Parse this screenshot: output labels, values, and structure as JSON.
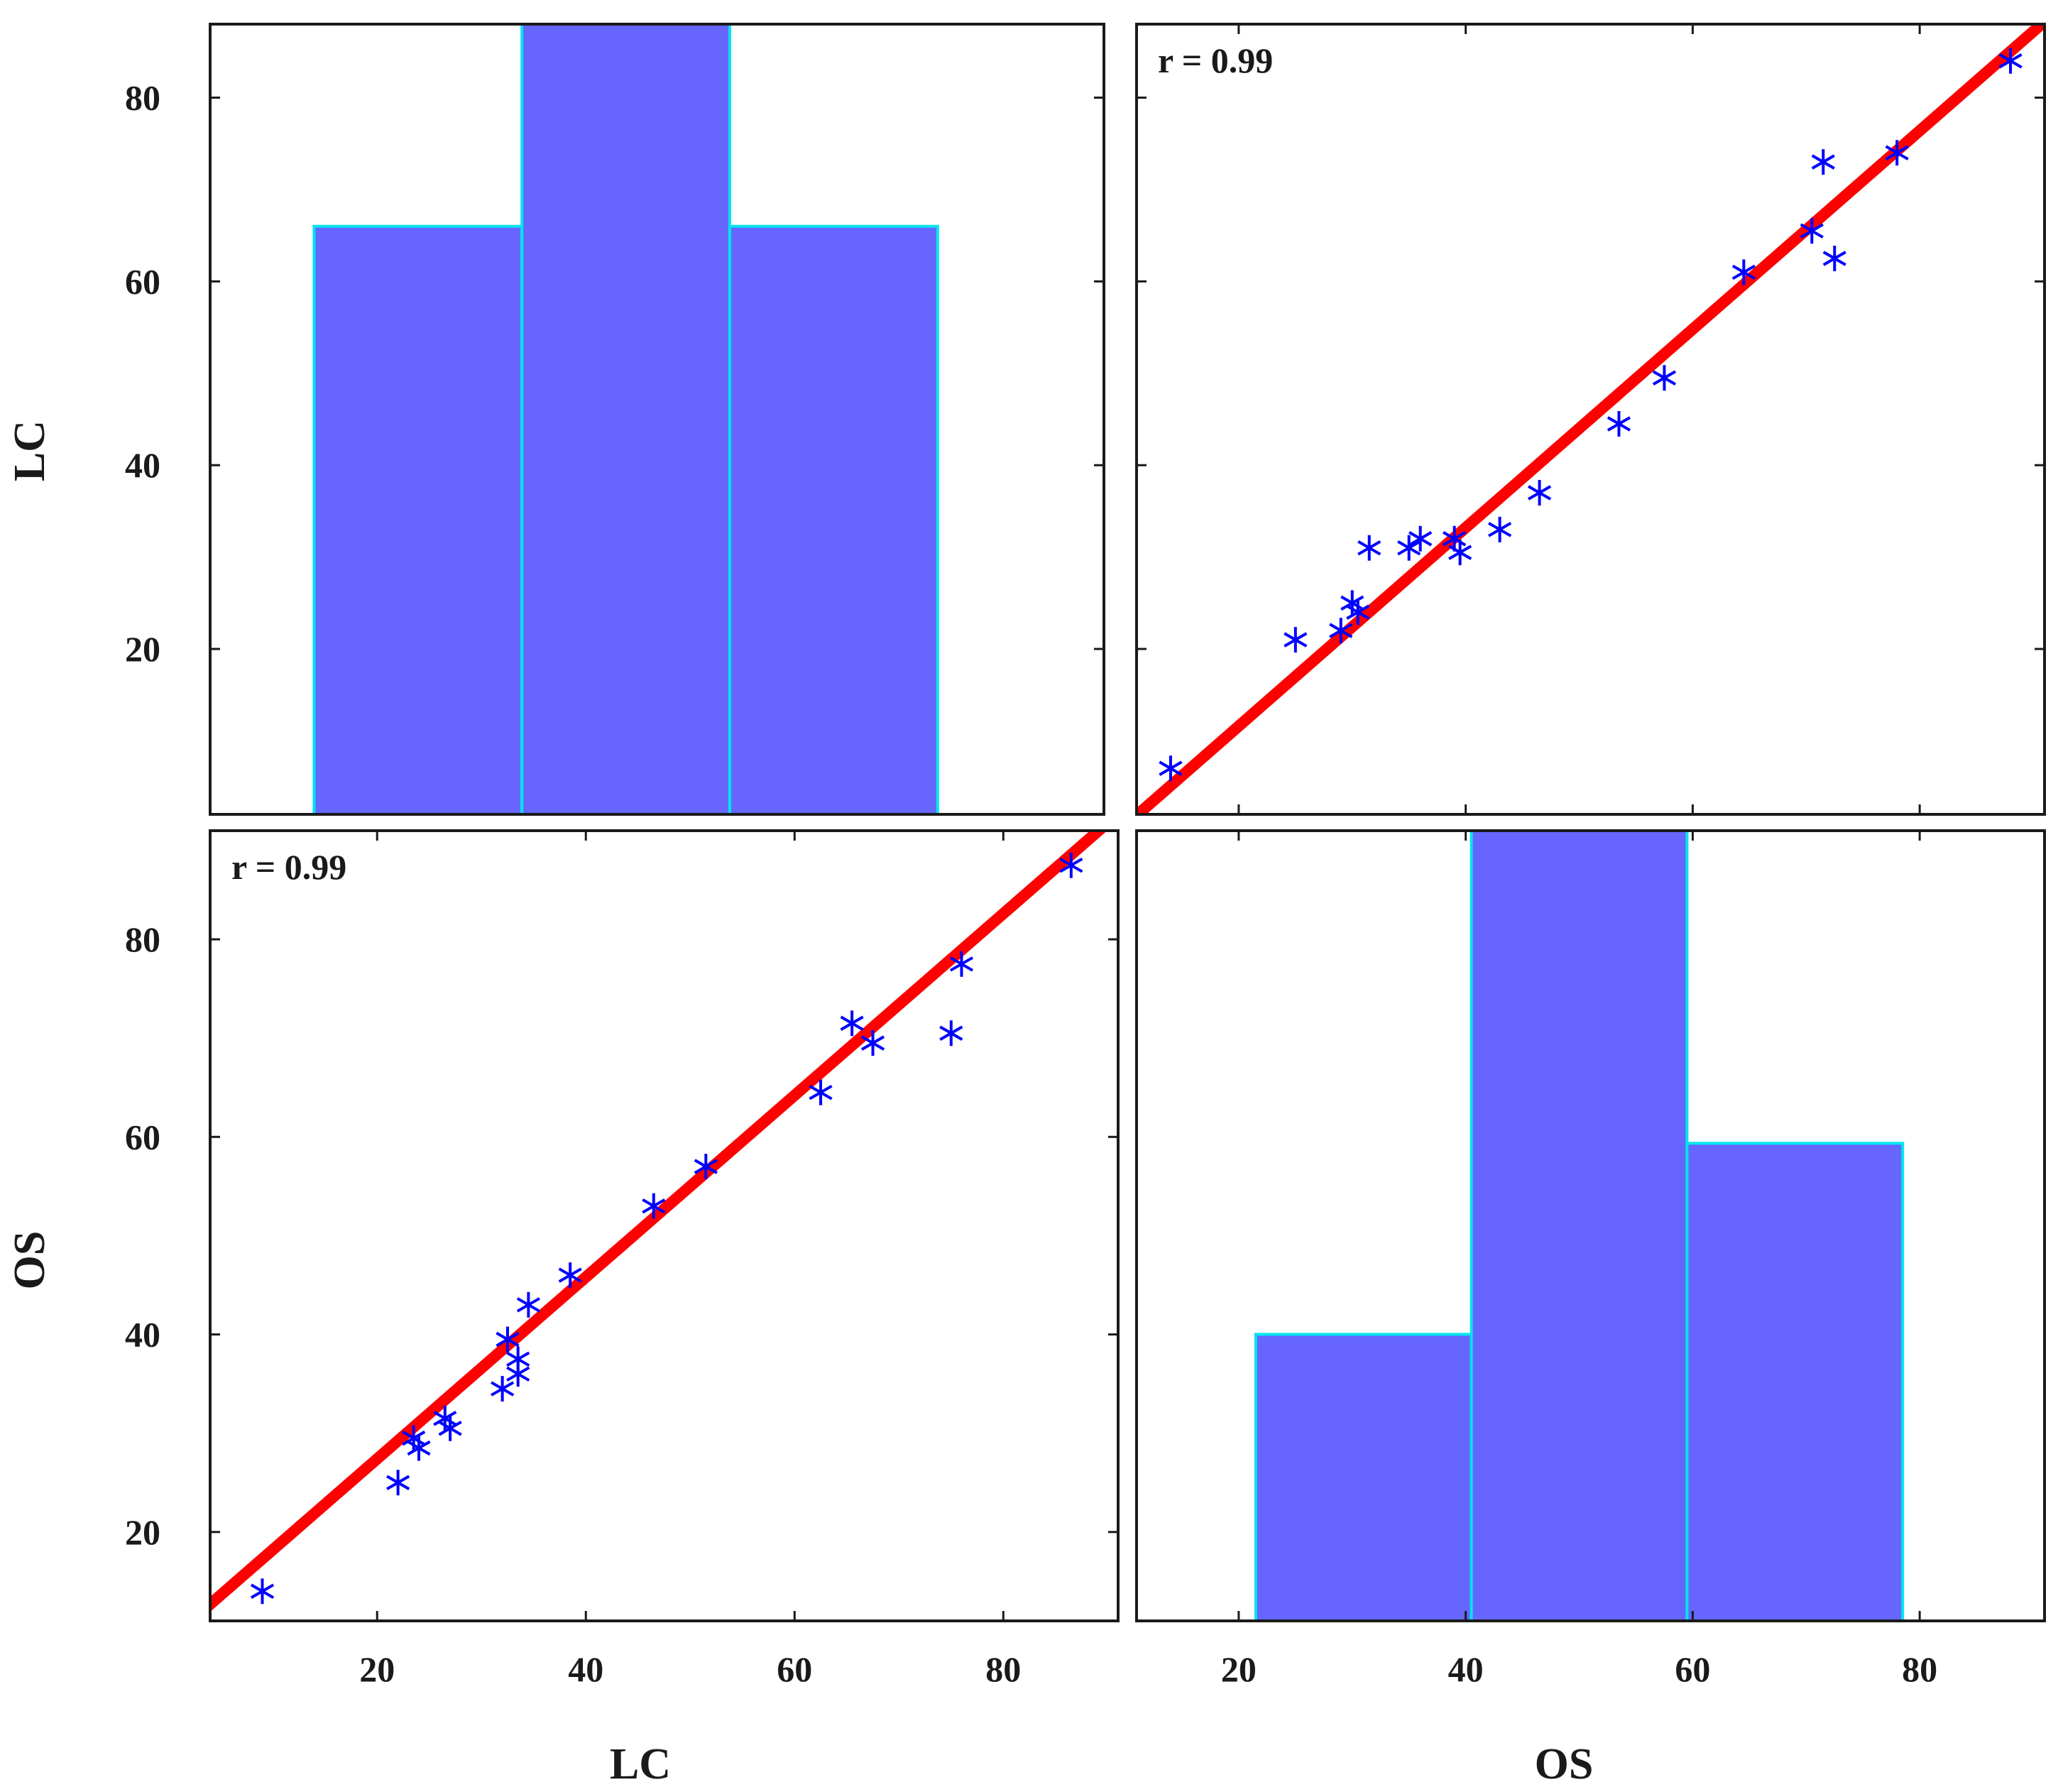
{
  "chart_data": {
    "type": "scatter-matrix",
    "variables": [
      "LC",
      "OS"
    ],
    "colors": {
      "bar_fill": "#6666ff",
      "bar_edge": "#00e5ee",
      "points": "#0000ff",
      "fit_line": "#ff0000"
    },
    "panels": [
      {
        "id": "lc-lc",
        "type": "histogram",
        "variable": "LC",
        "bin_edges": [
          14,
          34,
          54,
          74
        ],
        "values": [
          66,
          88,
          66
        ],
        "xlim": [
          4,
          90
        ],
        "ylim": [
          2,
          88
        ],
        "yticks": [
          20,
          40,
          60,
          80
        ],
        "ylabel": "LC"
      },
      {
        "id": "lc-os",
        "type": "scatter",
        "x_variable": "OS",
        "y_variable": "LC",
        "annotation": "r = 0.99",
        "xlim": [
          11,
          91
        ],
        "ylim": [
          2,
          88
        ],
        "xticks": [
          20,
          40,
          60,
          80
        ],
        "yticks": [
          20,
          40,
          60,
          80
        ],
        "fit": {
          "slope": 1.08,
          "intercept": -10
        },
        "x": [
          14,
          25,
          29,
          30,
          30.5,
          31.5,
          35,
          36,
          39,
          39.5,
          43,
          46.5,
          53.5,
          57.5,
          64.5,
          70.5,
          71.5,
          72.5,
          78,
          88
        ],
        "y": [
          7,
          21,
          22,
          25,
          24,
          31,
          31,
          32,
          32,
          30.5,
          33,
          37,
          44.5,
          49.5,
          61,
          65.5,
          73,
          62.5,
          74,
          84
        ]
      },
      {
        "id": "os-lc",
        "type": "scatter",
        "x_variable": "LC",
        "y_variable": "OS",
        "annotation": "r = 0.99",
        "xlim": [
          4,
          91
        ],
        "ylim": [
          11,
          91
        ],
        "xticks": [
          20,
          40,
          60,
          80
        ],
        "yticks": [
          20,
          40,
          60,
          80
        ],
        "fit": {
          "slope": 0.92,
          "intercept": 9
        },
        "x": [
          9,
          22,
          23.5,
          24,
          26.5,
          27,
          32,
          32.5,
          33.5,
          33.5,
          34.5,
          38.5,
          46.5,
          51.5,
          62.5,
          65.5,
          67.5,
          75,
          76,
          86.5
        ],
        "y": [
          14,
          25,
          29.5,
          28.5,
          31.5,
          30.5,
          34.5,
          39.5,
          36,
          37.5,
          43,
          46,
          53,
          57,
          64.5,
          71.5,
          69.5,
          70.5,
          77.5,
          87.5
        ],
        "xlabel": "LC",
        "ylabel": "OS"
      },
      {
        "id": "os-os",
        "type": "histogram",
        "variable": "OS",
        "bin_edges": [
          21.5,
          40.5,
          59.5,
          78.5
        ],
        "values": [
          33,
          91,
          55
        ],
        "xlim": [
          11,
          91
        ],
        "ylim": [
          0,
          91
        ],
        "xticks": [
          20,
          40,
          60,
          80
        ],
        "xlabel": "OS"
      }
    ]
  }
}
